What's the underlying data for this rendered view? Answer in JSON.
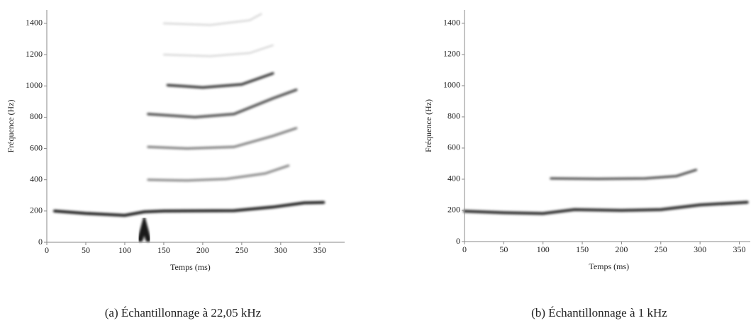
{
  "chart_data": [
    {
      "type": "spectrogram",
      "xlabel": "Temps (ms)",
      "ylabel": "Fréquence (Hz)",
      "caption": "(a) Échantillonnage à 22,05 kHz",
      "xlim": [
        0,
        382
      ],
      "ylim": [
        0,
        1486
      ],
      "xticks": [
        0,
        50,
        100,
        150,
        200,
        250,
        300,
        350
      ],
      "yticks": [
        0,
        200,
        400,
        600,
        800,
        1000,
        1200,
        1400
      ]
    },
    {
      "type": "spectrogram",
      "xlabel": "Temps (ms)",
      "ylabel": "Fréquence (Hz)",
      "caption": "(b) Échantillonnage à 1 kHz",
      "xlim": [
        0,
        364
      ],
      "ylim": [
        0,
        1486
      ],
      "xticks": [
        0,
        50,
        100,
        150,
        200,
        250,
        300,
        350
      ],
      "yticks": [
        0,
        200,
        400,
        600,
        800,
        1000,
        1200,
        1400
      ]
    }
  ]
}
